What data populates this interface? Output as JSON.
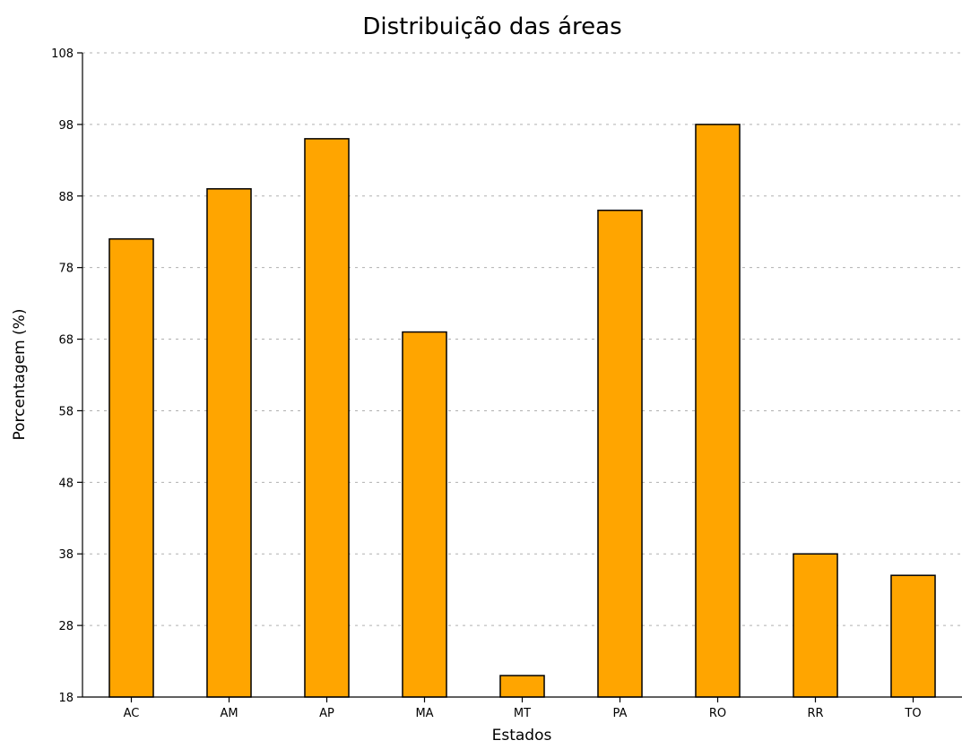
{
  "chart_data": {
    "type": "bar",
    "title": "Distribuição das áreas",
    "xlabel": "Estados",
    "ylabel": "Porcentagem (%)",
    "categories": [
      "AC",
      "AM",
      "AP",
      "MA",
      "MT",
      "PA",
      "RO",
      "RR",
      "TO"
    ],
    "values": [
      82,
      89,
      96,
      69,
      21,
      86,
      98,
      38,
      35
    ],
    "ylim": [
      18,
      108
    ],
    "yticks": [
      18,
      28,
      38,
      48,
      58,
      68,
      78,
      88,
      98,
      108
    ],
    "grid": true,
    "bar_color": "#ffa500",
    "bar_edge_color": "#000000"
  }
}
